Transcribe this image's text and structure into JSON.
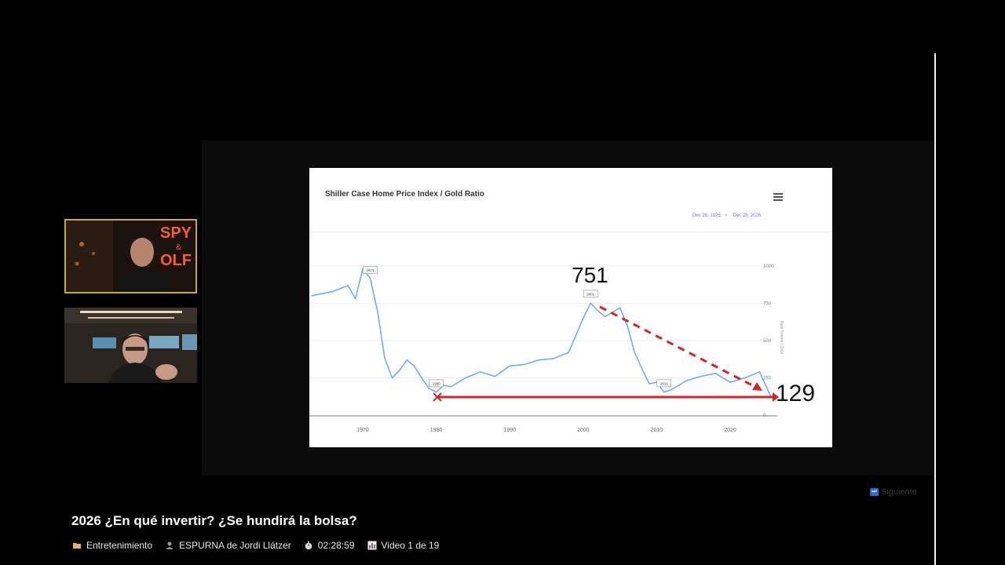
{
  "slide": {
    "title": "Shiller Case Home Price Index / Gold Ratio",
    "range_from": "Dec 28, 1925",
    "range_to": "Dec 28, 2026",
    "x_ticks": [
      "1970",
      "1980",
      "1990",
      "2000",
      "2010",
      "2020"
    ],
    "y_ticks": [
      "1000",
      "750",
      "500",
      "250",
      "0"
    ],
    "y_axis_label": "Real Tickets / Gold",
    "flags": [
      "1971",
      "1980",
      "2001",
      "2011"
    ],
    "peak_label": "751",
    "current_label": "129",
    "colors": {
      "line": "#6cb0e6",
      "arrow": "#d62424"
    }
  },
  "chart_data": {
    "type": "line",
    "title": "Shiller Case Home Price Index / Gold Ratio",
    "ylim": [
      0,
      1000
    ],
    "x": [
      1963,
      1966,
      1968,
      1969,
      1970,
      1971,
      1972,
      1973,
      1974,
      1975,
      1976,
      1977,
      1978,
      1979,
      1980,
      1981,
      1982,
      1984,
      1986,
      1988,
      1990,
      1992,
      1994,
      1996,
      1998,
      2000,
      2001,
      2002,
      2003,
      2004,
      2005,
      2006,
      2007,
      2008,
      2009,
      2010,
      2011,
      2012,
      2013,
      2014,
      2016,
      2018,
      2020,
      2022,
      2024,
      2025.5
    ],
    "series": [
      {
        "values": [
          800,
          830,
          870,
          780,
          980,
          920,
          700,
          380,
          250,
          300,
          370,
          330,
          250,
          180,
          155,
          200,
          190,
          250,
          290,
          260,
          330,
          340,
          370,
          380,
          420,
          650,
          751,
          700,
          660,
          690,
          720,
          600,
          420,
          310,
          210,
          220,
          155,
          170,
          200,
          230,
          260,
          280,
          220,
          250,
          290,
          129
        ]
      }
    ]
  },
  "video": {
    "next_label": "Siguiente",
    "title": "2026 ¿En qué invertir? ¿Se hundirá la bolsa?",
    "category": "Entretenimiento",
    "channel": "ESPURNA de Jordi Llátzer",
    "duration": "02:28:59",
    "position": "Video 1 de 19"
  }
}
